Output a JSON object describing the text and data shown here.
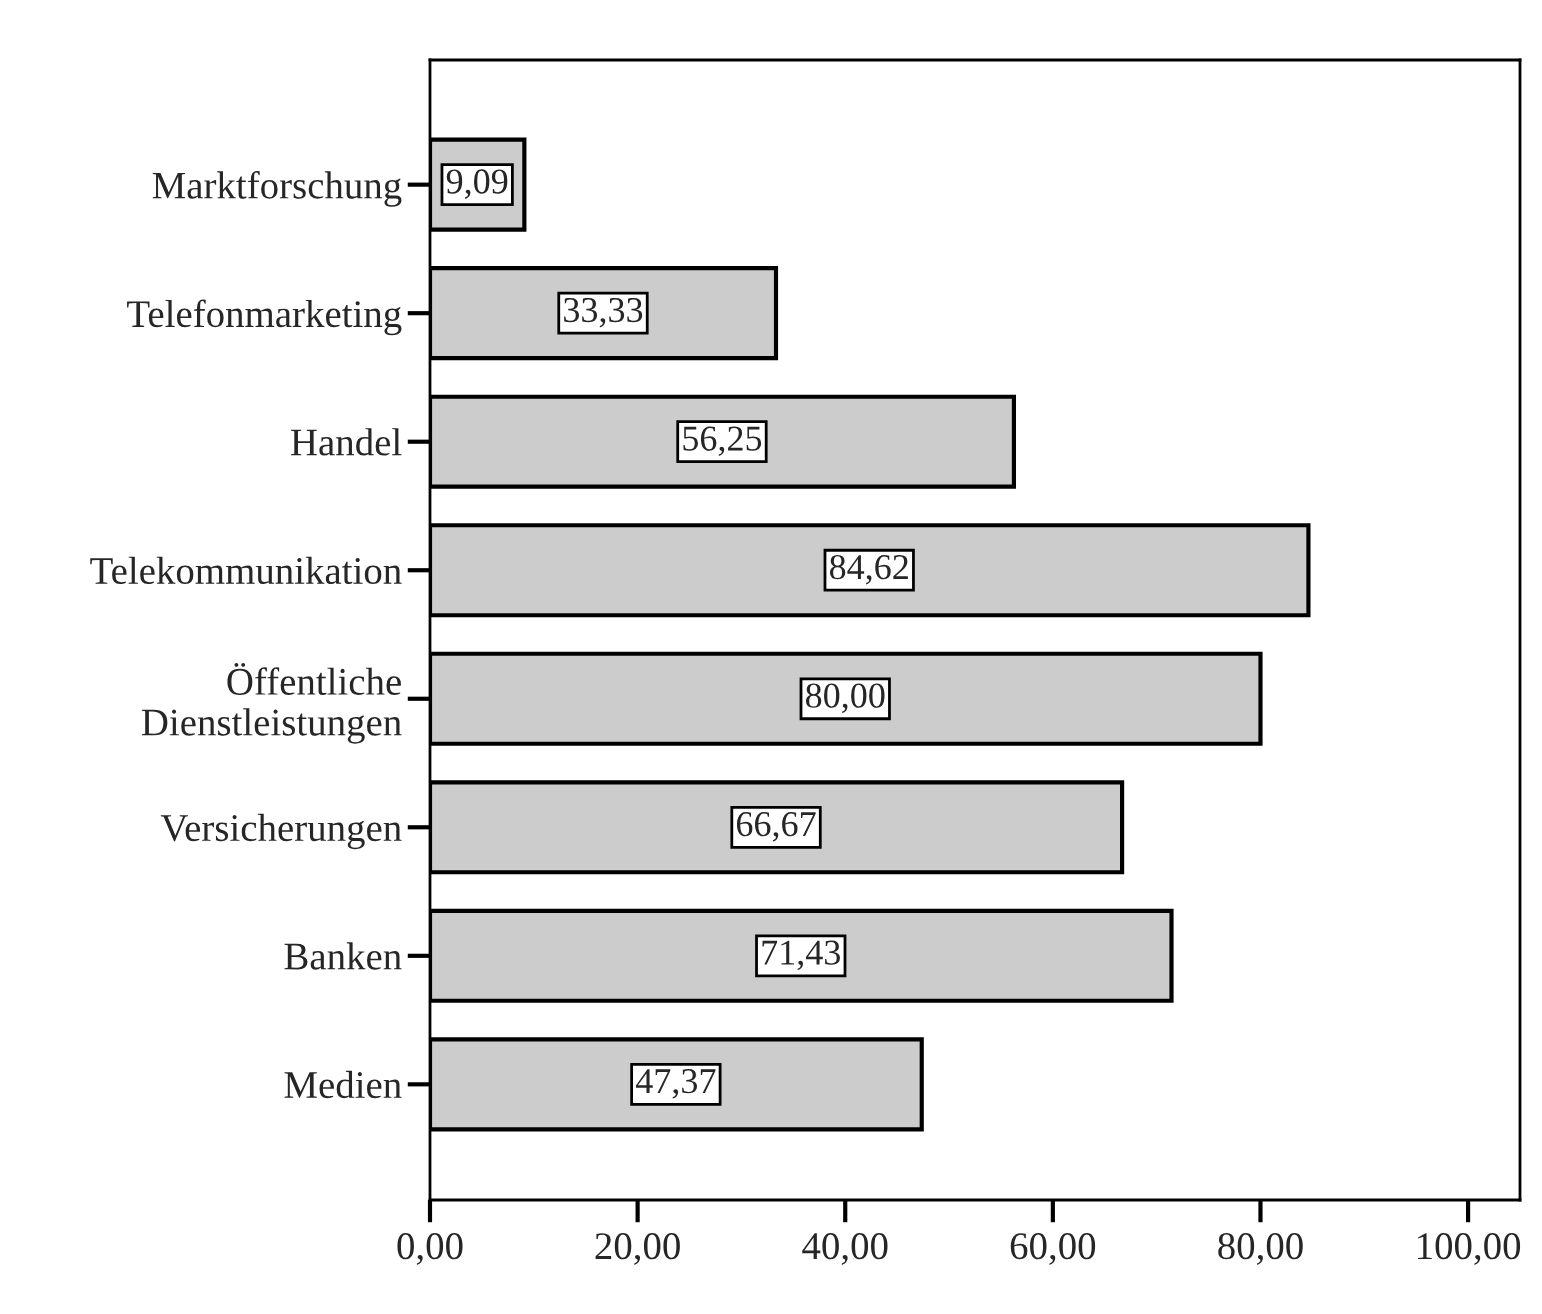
{
  "chart_data": {
    "type": "bar",
    "orientation": "horizontal",
    "categories": [
      "Marktforschung",
      "Telefonmarketing",
      "Handel",
      "Telekommunikation",
      "Öffentliche\nDienstleistungen",
      "Versicherungen",
      "Banken",
      "Medien"
    ],
    "values": [
      9.09,
      33.33,
      56.25,
      84.62,
      80.0,
      66.67,
      71.43,
      47.37
    ],
    "value_labels": [
      "9,09",
      "33,33",
      "56,25",
      "84,62",
      "80,00",
      "66,67",
      "71,43",
      "47,37"
    ],
    "color": "#cccccc",
    "xlim": [
      0,
      105
    ],
    "xticks": [
      {
        "value": 0,
        "label": "0,00"
      },
      {
        "value": 20,
        "label": "20,00"
      },
      {
        "value": 40,
        "label": "40,00"
      },
      {
        "value": 60,
        "label": "60,00"
      },
      {
        "value": 80,
        "label": "80,00"
      },
      {
        "value": 100,
        "label": "100,00"
      }
    ],
    "grid": false
  }
}
